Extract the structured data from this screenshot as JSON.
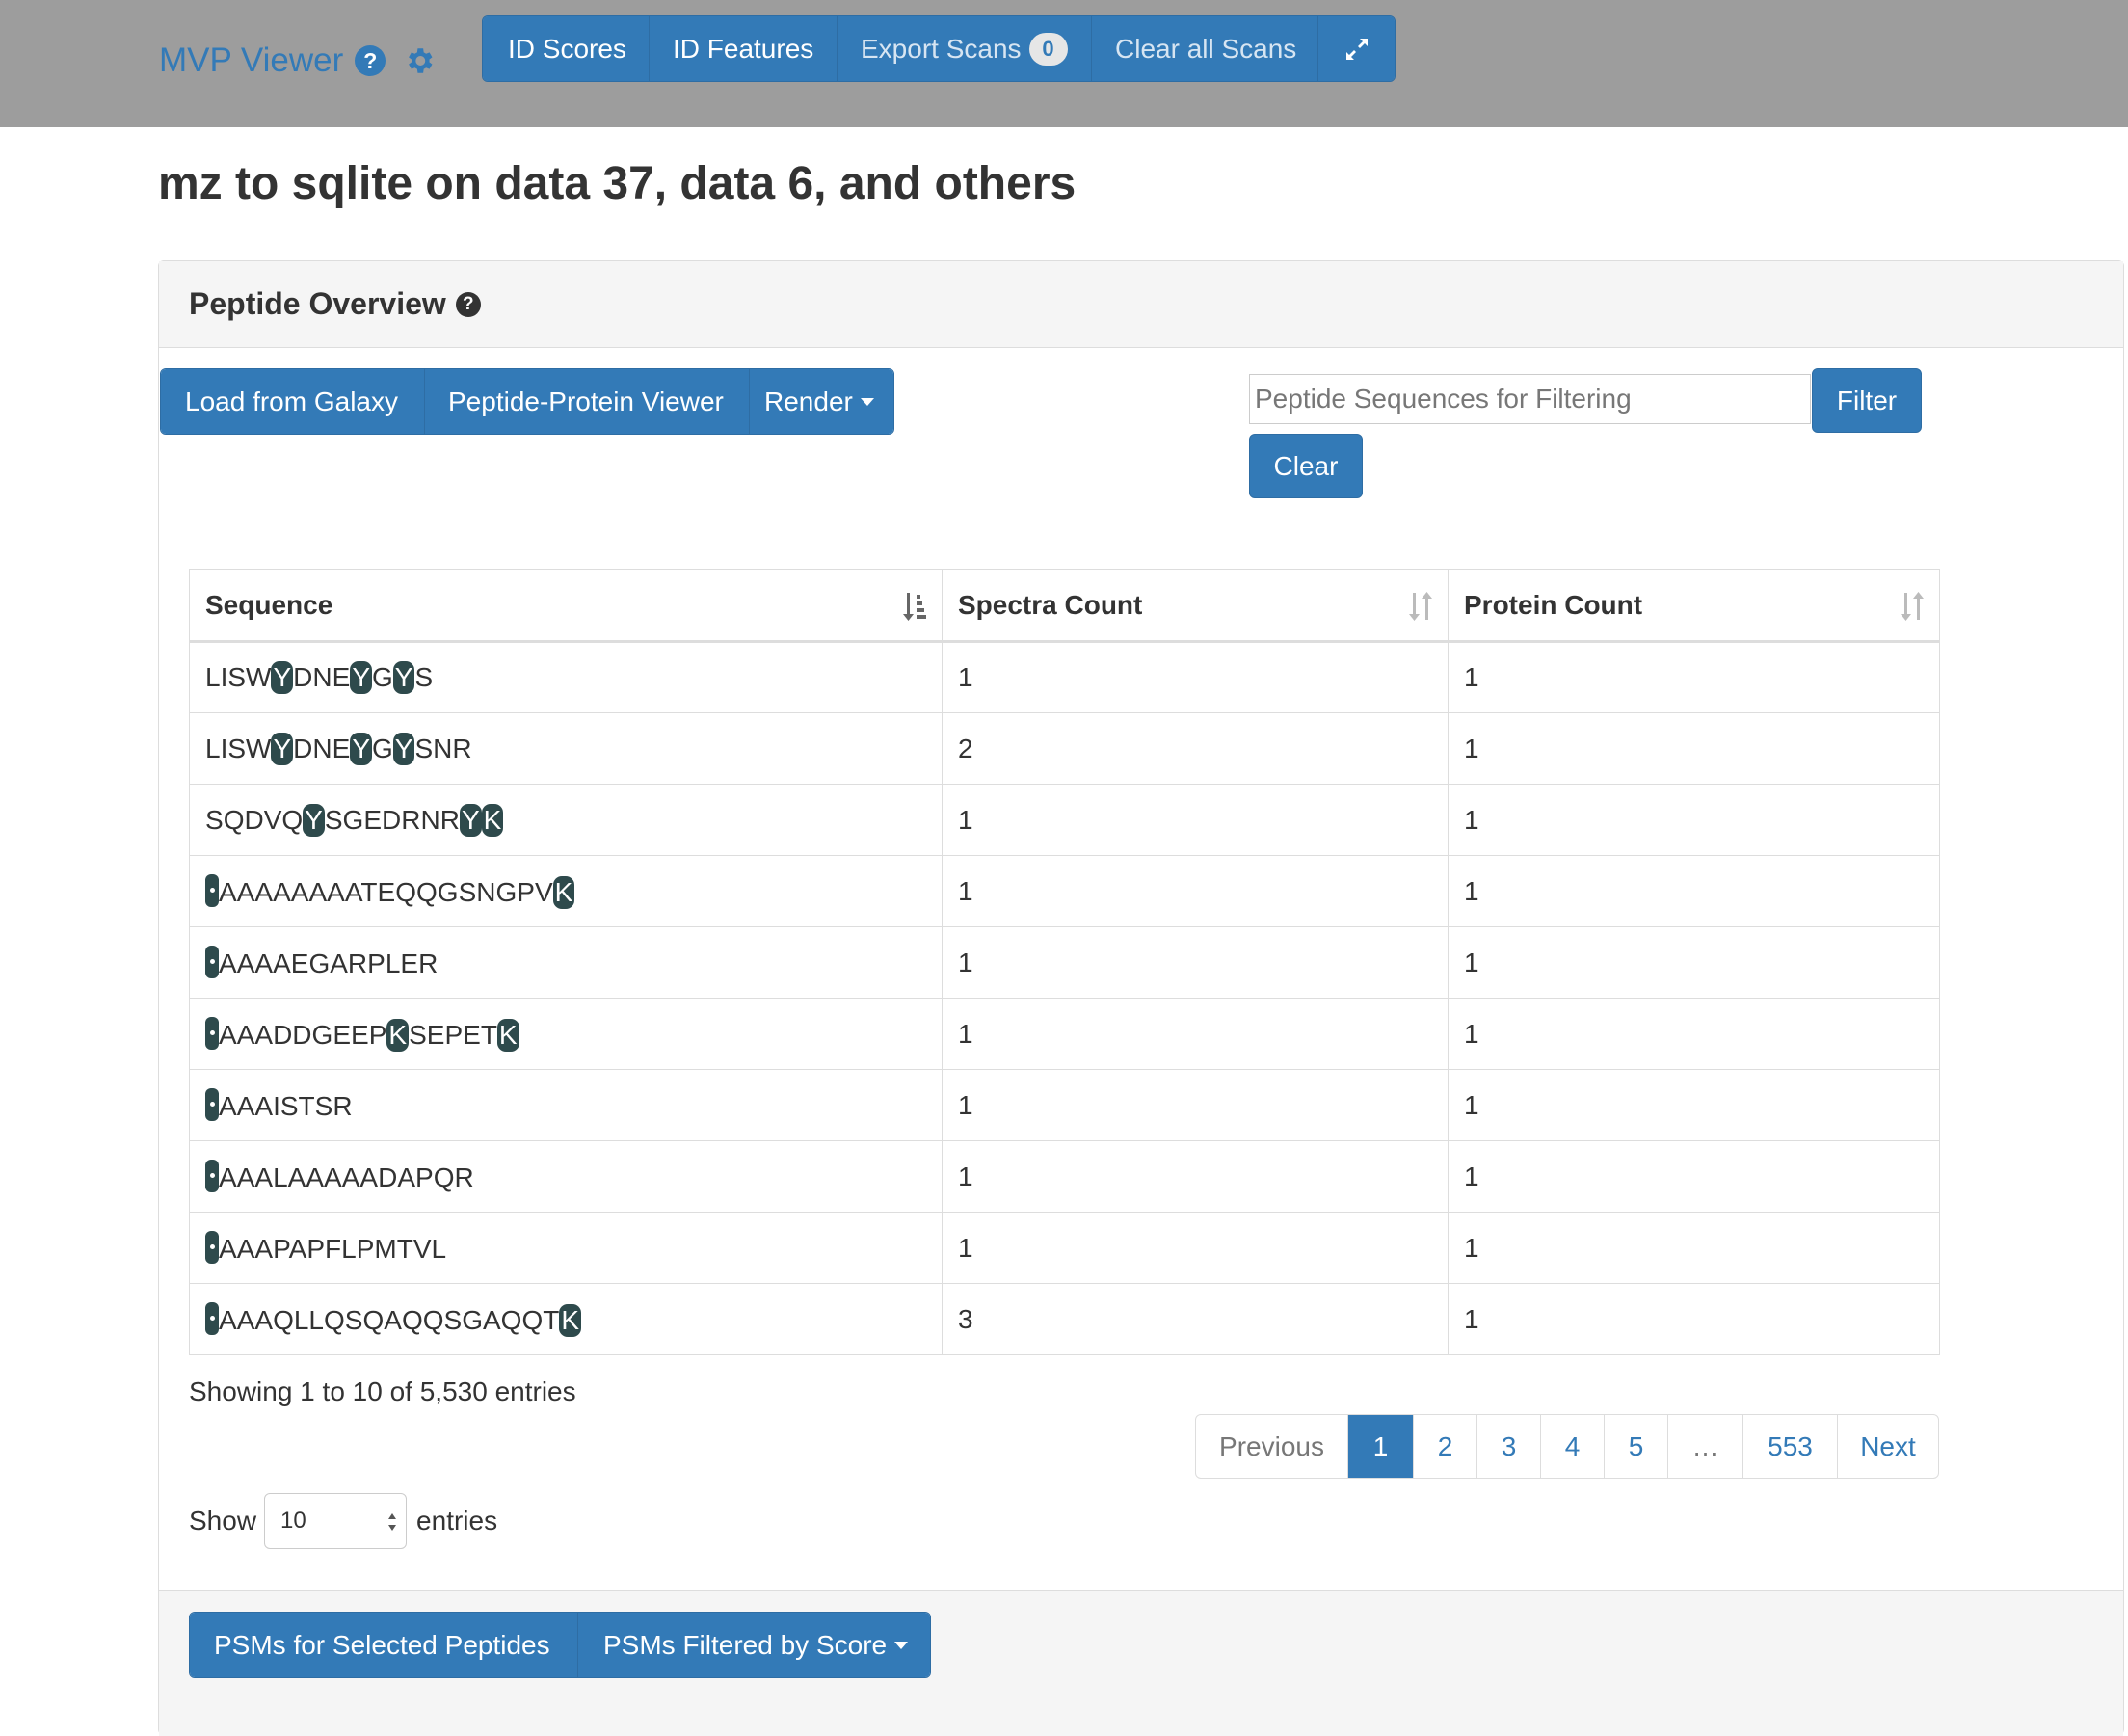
{
  "navbar": {
    "title": "MVP Viewer",
    "help_glyph": "?",
    "icons": [
      "help-icon",
      "gear-icon",
      "expand-icon"
    ],
    "buttons": {
      "id_scores": "ID Scores",
      "id_features": "ID Features",
      "export_scans": "Export Scans",
      "export_count": "0",
      "clear_scans": "Clear all Scans"
    }
  },
  "page": {
    "title": "mz to sqlite on data 37, data 6, and others"
  },
  "panel": {
    "heading": "Peptide Overview",
    "help_glyph": "?",
    "toolbar": {
      "load_galaxy": "Load from Galaxy",
      "peptide_protein_viewer": "Peptide-Protein Viewer",
      "render": "Render"
    },
    "filter": {
      "placeholder": "Peptide Sequences for Filtering",
      "value": "",
      "filter_label": "Filter",
      "clear_label": "Clear"
    },
    "table": {
      "headers": [
        "Sequence",
        "Spectra Count",
        "Protein Count"
      ],
      "rows": [
        {
          "sequence": "LISWYDNEYGYS",
          "spectra": "1",
          "proteins": "1"
        },
        {
          "sequence": "LISWYDNEYGYSNR",
          "spectra": "2",
          "proteins": "1"
        },
        {
          "sequence": "SQDVQYSGEDRNRYK",
          "spectra": "1",
          "proteins": "1"
        },
        {
          "sequence": "AAAAAAAATEQQGSNGPVK",
          "spectra": "1",
          "proteins": "1"
        },
        {
          "sequence": "AAAAEGARPLER",
          "spectra": "1",
          "proteins": "1"
        },
        {
          "sequence": "AAADDGEEPKSEPETK",
          "spectra": "1",
          "proteins": "1"
        },
        {
          "sequence": "AAAISTSR",
          "spectra": "1",
          "proteins": "1"
        },
        {
          "sequence": "AAALAAAAADAPQR",
          "spectra": "1",
          "proteins": "1"
        },
        {
          "sequence": "AAAPAPFLPMTVL",
          "spectra": "1",
          "proteins": "1"
        },
        {
          "sequence": "AAAQLLQSQAQQSGAQQTK",
          "spectra": "3",
          "proteins": "1"
        }
      ]
    },
    "info": "Showing 1 to 10 of 5,530 entries",
    "pagination": [
      "Previous",
      "1",
      "2",
      "3",
      "4",
      "5",
      "…",
      "553",
      "Next"
    ],
    "length": {
      "show": "Show",
      "value": "10",
      "entries": "entries"
    },
    "footer": {
      "psms_selected": "PSMs for Selected Peptides",
      "psms_filtered": "PSMs Filtered by Score"
    }
  },
  "colors": {
    "navbar_bg": "#9d9d9d",
    "primary": "#337ab7",
    "modified_residue": "#2e4a4c"
  }
}
